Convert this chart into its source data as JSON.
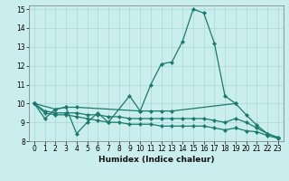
{
  "bg_color": "#caeeed",
  "grid_color": "#a8d8d8",
  "line_color": "#1a7a6e",
  "xlabel": "Humidex (Indice chaleur)",
  "xlim": [
    -0.5,
    23.5
  ],
  "ylim": [
    8,
    15.2
  ],
  "yticks": [
    8,
    9,
    10,
    11,
    12,
    13,
    14,
    15
  ],
  "xticks": [
    0,
    1,
    2,
    3,
    4,
    5,
    6,
    7,
    8,
    9,
    10,
    11,
    12,
    13,
    14,
    15,
    16,
    17,
    18,
    19,
    20,
    21,
    22,
    23
  ],
  "series": [
    {
      "x": [
        0,
        1,
        2,
        3,
        4,
        5,
        6,
        7,
        9,
        10,
        11,
        12,
        13,
        14,
        15,
        16,
        17,
        18,
        19
      ],
      "y": [
        10.0,
        9.2,
        9.7,
        9.8,
        8.4,
        9.0,
        9.5,
        9.0,
        10.4,
        9.6,
        11.0,
        12.1,
        12.2,
        13.3,
        15.0,
        14.8,
        13.2,
        10.4,
        10.0
      ]
    },
    {
      "x": [
        0,
        2,
        3,
        4,
        10,
        11,
        12,
        13,
        19,
        20,
        21,
        22,
        23
      ],
      "y": [
        10.0,
        9.7,
        9.8,
        9.8,
        9.6,
        9.6,
        9.6,
        9.6,
        10.0,
        9.4,
        8.85,
        8.4,
        8.2
      ]
    },
    {
      "x": [
        0,
        1,
        2,
        3,
        4,
        5,
        6,
        7,
        8,
        9,
        10,
        11,
        12,
        13,
        14,
        15,
        16,
        17,
        18,
        19,
        20,
        21,
        22,
        23
      ],
      "y": [
        10.0,
        9.6,
        9.5,
        9.5,
        9.5,
        9.4,
        9.4,
        9.3,
        9.3,
        9.2,
        9.2,
        9.2,
        9.2,
        9.2,
        9.2,
        9.2,
        9.2,
        9.1,
        9.0,
        9.2,
        9.0,
        8.7,
        8.4,
        8.2
      ]
    },
    {
      "x": [
        0,
        1,
        2,
        3,
        4,
        5,
        6,
        7,
        8,
        9,
        10,
        11,
        12,
        13,
        14,
        15,
        16,
        17,
        18,
        19,
        20,
        21,
        22,
        23
      ],
      "y": [
        10.0,
        9.5,
        9.4,
        9.4,
        9.3,
        9.2,
        9.1,
        9.0,
        9.0,
        8.9,
        8.9,
        8.9,
        8.8,
        8.8,
        8.8,
        8.8,
        8.8,
        8.7,
        8.6,
        8.7,
        8.55,
        8.5,
        8.3,
        8.15
      ]
    }
  ]
}
